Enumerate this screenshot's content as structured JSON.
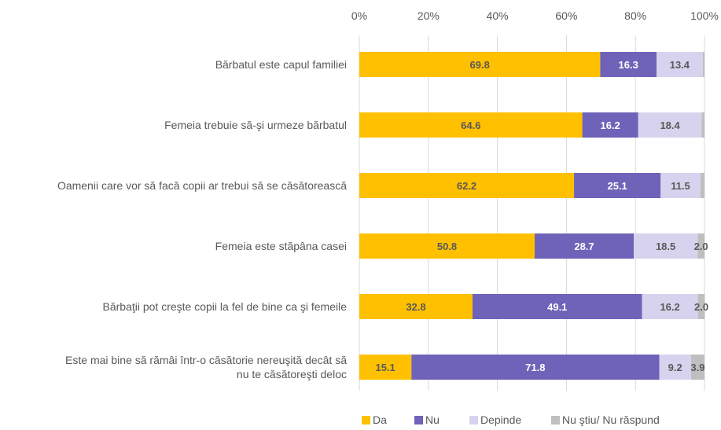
{
  "chart_data": {
    "type": "bar",
    "orientation": "horizontal",
    "stacked": true,
    "xlim": [
      0,
      100
    ],
    "x_tick_labels": [
      "0%",
      "20%",
      "40%",
      "60%",
      "80%",
      "100%"
    ],
    "grid": true,
    "legend_position": "bottom",
    "categories": [
      [
        "Bărbatul este capul familiei"
      ],
      [
        "Femeia trebuie să-şi urmeze bărbatul"
      ],
      [
        "Oamenii care vor să facă copii ar trebui să se căsătorească"
      ],
      [
        "Femeia este stăpâna casei"
      ],
      [
        "Bărbaţii pot creşte copii la fel de bine ca şi femeile"
      ],
      [
        "Este mai bine să rămâi într-o căsătorie nereuşită decât să",
        "nu te căsătoreşti deloc"
      ]
    ],
    "series": [
      {
        "name": "Da",
        "color": "#FFC000",
        "values": [
          69.8,
          64.6,
          62.2,
          50.8,
          32.8,
          15.1
        ],
        "labels": [
          "69.8",
          "64.6",
          "62.2",
          "50.8",
          "32.8",
          "15.1"
        ]
      },
      {
        "name": "Nu",
        "color": "#6E63B8",
        "values": [
          16.3,
          16.2,
          25.1,
          28.7,
          49.1,
          71.8
        ],
        "labels": [
          "16.3",
          "16.2",
          "25.1",
          "28.7",
          "49.1",
          "71.8"
        ]
      },
      {
        "name": "Depinde",
        "color": "#D7D3EE",
        "values": [
          13.4,
          18.4,
          11.5,
          18.5,
          16.2,
          9.2
        ],
        "labels": [
          "13.4",
          "18.4",
          "11.5",
          "18.5",
          "16.2",
          "9.2"
        ]
      },
      {
        "name": "Nu ştiu/ Nu răspund",
        "color": "#BFBFBF",
        "values": [
          0.5,
          0.8,
          1.2,
          2.0,
          2.0,
          3.9
        ],
        "labels": [
          "",
          "",
          "",
          "2.0",
          "2.0",
          "3.9"
        ]
      }
    ],
    "label_colors": {
      "on_dark": "#ffffff",
      "on_light": "#595959"
    },
    "axis_color": "#595959",
    "grid_color": "#D9D9D9"
  }
}
